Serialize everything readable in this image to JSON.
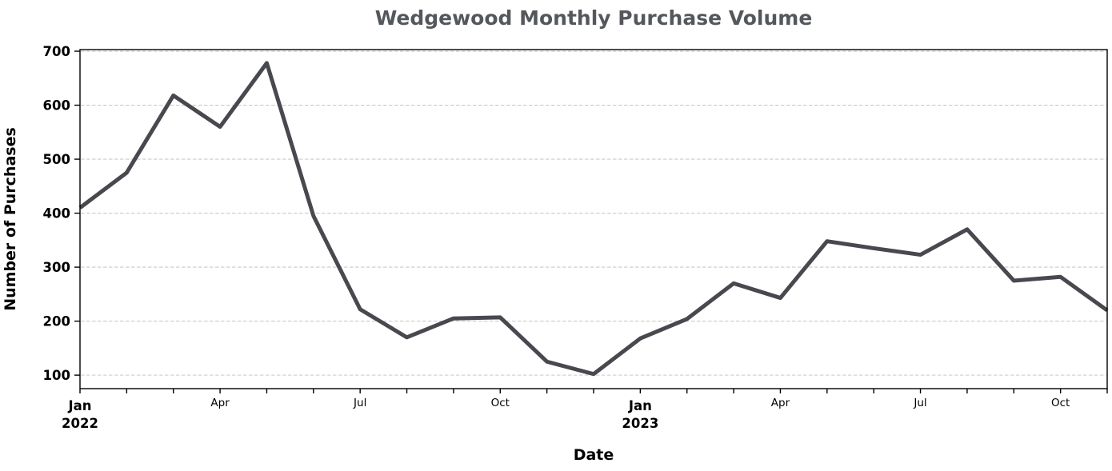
{
  "chart_data": {
    "type": "line",
    "title": "Wedgewood Monthly Purchase Volume",
    "xlabel": "Date",
    "ylabel": "Number of Purchases",
    "x": [
      "2022-01",
      "2022-02",
      "2022-03",
      "2022-04",
      "2022-05",
      "2022-06",
      "2022-07",
      "2022-08",
      "2022-09",
      "2022-10",
      "2022-11",
      "2022-12",
      "2023-01",
      "2023-02",
      "2023-03",
      "2023-04",
      "2023-05",
      "2023-06",
      "2023-07",
      "2023-08",
      "2023-09",
      "2023-10",
      "2023-11"
    ],
    "series": [
      {
        "name": "Number of Purchases",
        "values": [
          410,
          475,
          618,
          560,
          678,
          395,
          222,
          170,
          205,
          207,
          125,
          102,
          168,
          204,
          270,
          243,
          348,
          335,
          323,
          370,
          275,
          282,
          220
        ]
      }
    ],
    "ylim": [
      75,
      703
    ],
    "yticks": [
      100,
      200,
      300,
      400,
      500,
      600,
      700
    ],
    "xticks": [
      {
        "index": 0,
        "label": "Jan",
        "sub": "2022",
        "bold": true
      },
      {
        "index": 3,
        "label": "Apr",
        "sub": "",
        "bold": false
      },
      {
        "index": 6,
        "label": "Jul",
        "sub": "",
        "bold": false
      },
      {
        "index": 9,
        "label": "Oct",
        "sub": "",
        "bold": false
      },
      {
        "index": 12,
        "label": "Jan",
        "sub": "2023",
        "bold": true
      },
      {
        "index": 15,
        "label": "Apr",
        "sub": "",
        "bold": false
      },
      {
        "index": 18,
        "label": "Jul",
        "sub": "",
        "bold": false
      },
      {
        "index": 21,
        "label": "Oct",
        "sub": "",
        "bold": false
      }
    ],
    "grid": "horizontal-dashed",
    "legend": null,
    "colors": {
      "line": "#47494e",
      "title": "#54575c",
      "gridline": "#c9c9c9",
      "spine": "#000000",
      "tick_label": "#000000",
      "background": "#ffffff"
    }
  }
}
